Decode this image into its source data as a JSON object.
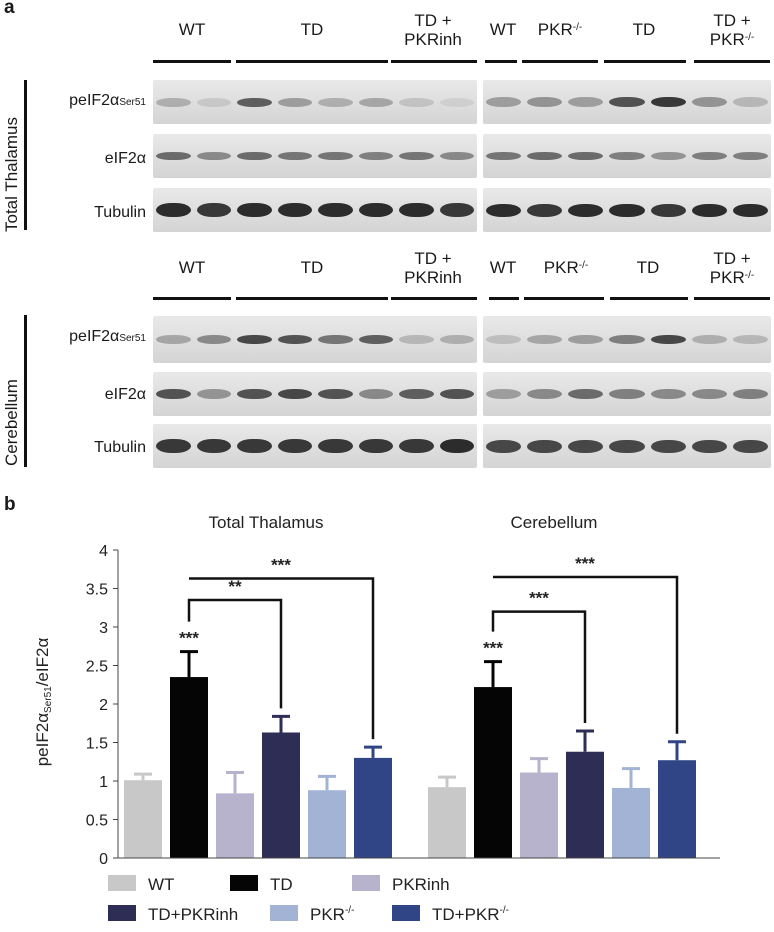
{
  "panels": {
    "a": "a",
    "b": "b"
  },
  "blot": {
    "side_labels": {
      "top": "Total Thalamus",
      "bottom": "Cerebellum"
    },
    "row_labels": {
      "p_main": "peIF2α",
      "p_sub": "Ser51",
      "e": "eIF2α",
      "t": "Tubulin"
    },
    "left_groups": [
      "WT",
      "TD",
      "TD +",
      "PKRinh"
    ],
    "right_groups": {
      "wt": "WT",
      "pkr": "PKR",
      "pkr_sup": "-/-",
      "td": "TD",
      "tdpkr_1": "TD +",
      "tdpkr_2": "PKR",
      "tdpkr_sup": "-/-"
    }
  },
  "chart_data": {
    "type": "bar",
    "titles": [
      "Total Thalamus",
      "Cerebellum"
    ],
    "ylabel_main": "peIF2α",
    "ylabel_sub": "Ser51",
    "ylabel_rest": "/eIF2α",
    "ylim": [
      0,
      4
    ],
    "yticks": [
      "0",
      "0.5",
      "1",
      "1.5",
      "2",
      "2.5",
      "3",
      "3.5",
      "4"
    ],
    "series": [
      {
        "name": "WT",
        "color": "#c8c8c8"
      },
      {
        "name": "TD",
        "color": "#050505"
      },
      {
        "name": "PKRinh",
        "color": "#b7b3cd"
      },
      {
        "name": "TD+PKRinh",
        "color": "#2e2d55"
      },
      {
        "name": "PKR-/-",
        "color": "#a2b3d6"
      },
      {
        "name": "TD+PKR-/-",
        "color": "#2f4585"
      }
    ],
    "groups": [
      {
        "name": "Total Thalamus",
        "values": [
          1.01,
          2.35,
          0.84,
          1.63,
          0.88,
          1.3
        ],
        "errors": [
          0.08,
          0.33,
          0.27,
          0.21,
          0.18,
          0.14
        ]
      },
      {
        "name": "Cerebellum",
        "values": [
          0.92,
          2.22,
          1.11,
          1.38,
          0.91,
          1.27
        ],
        "errors": [
          0.13,
          0.33,
          0.18,
          0.27,
          0.25,
          0.24
        ]
      }
    ],
    "annotations": [
      "***",
      "**",
      "***",
      "***",
      "***",
      "***"
    ],
    "legend": {
      "entries": [
        "WT",
        "TD",
        "PKRinh",
        "TD+PKRinh",
        "PKR",
        "TD+PKR"
      ],
      "sup": "-/-"
    }
  }
}
